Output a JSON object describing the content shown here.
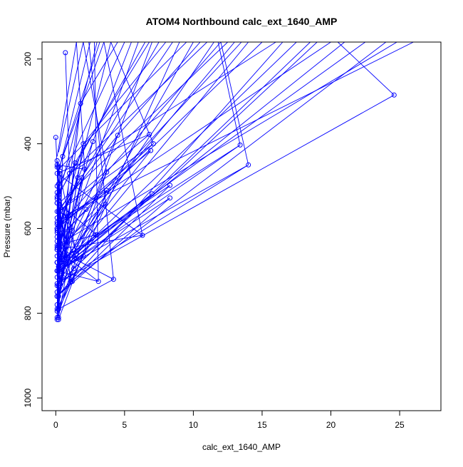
{
  "chart_data": {
    "type": "line",
    "title": "ATOM4 Northbound calc_ext_1640_AMP",
    "xlabel": "calc_ext_1640_AMP",
    "ylabel": "Pressure (mbar)",
    "xlim": [
      -1,
      28
    ],
    "ylim": [
      1030,
      160
    ],
    "y_reversed": true,
    "x_ticks": [
      0,
      5,
      10,
      15,
      20,
      25
    ],
    "y_ticks": [
      200,
      400,
      600,
      800,
      1000
    ],
    "grid": false,
    "legend": "none",
    "colors": {
      "series": "#0000ff",
      "axis": "#000000",
      "background": "#ffffff"
    },
    "series": [
      {
        "x": [
          0.7,
          1.0,
          0.2,
          1.8,
          0.1,
          0.5,
          0.2,
          2.0,
          0.1,
          0.3,
          0.1,
          2.1,
          0.2,
          0.1,
          0.2,
          2.7,
          0.1,
          0.3,
          0.1,
          0.2,
          1.4,
          0.1,
          0.8,
          0.1,
          1.9,
          0.2,
          0.1,
          0.2,
          0.1,
          4.5,
          0.1,
          0.2,
          0.1,
          2.0,
          0.1,
          0.5,
          0.1,
          0.2,
          0.1
        ],
        "y": [
          185,
          470,
          790,
          305,
          680,
          560,
          760,
          400,
          620,
          720,
          450,
          460,
          810,
          540,
          690,
          395,
          605,
          730,
          500,
          790,
          445,
          530,
          670,
          780,
          480,
          700,
          600,
          495,
          560,
          380,
          680,
          640,
          790,
          665,
          700,
          430,
          815,
          735,
          575
        ]
      },
      {
        "x": [
          0.0,
          0.1,
          0.8,
          0.1,
          1.2,
          0.1,
          0.3,
          0.1,
          1.6,
          0.2,
          0.4,
          0.1,
          1.1,
          0.1,
          0.2,
          3.7,
          0.1,
          0.3,
          0.1,
          0.2,
          2.2,
          0.1,
          0.5,
          0.1,
          1.5,
          0.2,
          0.1,
          3.0,
          0.1,
          0.2,
          0.1,
          0.9,
          0.2,
          0.1,
          1.3,
          0.1
        ],
        "y": [
          385,
          455,
          640,
          525,
          605,
          715,
          465,
          795,
          480,
          595,
          680,
          515,
          725,
          645,
          815,
          510,
          585,
          470,
          760,
          690,
          555,
          630,
          720,
          440,
          660,
          520,
          750,
          615,
          540,
          455,
          665,
          570,
          640,
          810,
          695,
          610
        ]
      },
      {
        "x": [
          24.6,
          0.1,
          14.0,
          0.2,
          13.4,
          0.1,
          8.3,
          0.1,
          8.3,
          0.2,
          7.0,
          0.2,
          6.9,
          0.1,
          7.1,
          0.2,
          6.8,
          0.1,
          6.3,
          0.1,
          4.2,
          0.2,
          3.7,
          0.1,
          3.6,
          0.1,
          3.1,
          0.1,
          2.9,
          0.1,
          1.5,
          0.1,
          1.2,
          0.1,
          0.9,
          0.1
        ],
        "y": [
          285,
          730,
          450,
          700,
          403,
          680,
          498,
          760,
          528,
          700,
          518,
          690,
          416,
          600,
          400,
          560,
          378,
          470,
          616,
          650,
          720,
          790,
          467,
          735,
          542,
          650,
          725,
          700,
          615,
          640,
          670,
          590,
          725,
          700,
          565,
          600
        ]
      }
    ],
    "upward_segments": [
      [
        0.2,
        760,
        7.0,
        160
      ],
      [
        0.2,
        720,
        10.0,
        160
      ],
      [
        0.1,
        690,
        6.0,
        160
      ],
      [
        0.3,
        640,
        4.0,
        160
      ],
      [
        0.1,
        600,
        12.0,
        160
      ],
      [
        0.2,
        560,
        8.5,
        160
      ],
      [
        0.1,
        540,
        3.0,
        160
      ],
      [
        0.2,
        500,
        5.0,
        160
      ],
      [
        0.1,
        480,
        2.5,
        160
      ],
      [
        0.2,
        460,
        9.5,
        160
      ],
      [
        0.1,
        430,
        1.5,
        160
      ],
      [
        0.3,
        700,
        14.0,
        160
      ],
      [
        0.1,
        660,
        13.0,
        160
      ],
      [
        0.2,
        620,
        15.0,
        160
      ],
      [
        0.1,
        580,
        7.5,
        160
      ],
      [
        0.2,
        520,
        6.5,
        160
      ],
      [
        0.1,
        500,
        11.0,
        160
      ],
      [
        0.3,
        450,
        3.5,
        160
      ],
      [
        0.2,
        420,
        2.0,
        160
      ],
      [
        1.0,
        470,
        16.0,
        160
      ],
      [
        1.8,
        305,
        4.5,
        160
      ],
      [
        2.0,
        400,
        8.0,
        160
      ],
      [
        2.7,
        395,
        5.5,
        160
      ],
      [
        0.5,
        430,
        3.2,
        160
      ],
      [
        4.5,
        380,
        10.5,
        160
      ],
      [
        0.8,
        670,
        11.5,
        160
      ],
      [
        1.4,
        445,
        6.8,
        160
      ],
      [
        0.1,
        800,
        9.0,
        160
      ],
      [
        1.5,
        660,
        17.5,
        160
      ],
      [
        1.1,
        725,
        24.0,
        160
      ],
      [
        3.0,
        615,
        22.5,
        160
      ],
      [
        0.1,
        640,
        24.8,
        160
      ],
      [
        0.1,
        760,
        16.5,
        160
      ],
      [
        0.2,
        590,
        20.0,
        160
      ],
      [
        0.5,
        720,
        18.5,
        160
      ],
      [
        0.9,
        565,
        26.0,
        160
      ],
      [
        0.2,
        700,
        21.0,
        160
      ],
      [
        0.1,
        545,
        12.5,
        160
      ],
      [
        1.3,
        695,
        19.0,
        160
      ],
      [
        2.2,
        555,
        13.5,
        160
      ]
    ],
    "downward_segments": [
      [
        11.8,
        160,
        13.4,
        403
      ],
      [
        12.0,
        160,
        14.0,
        450
      ],
      [
        20.5,
        160,
        24.6,
        285
      ],
      [
        3.5,
        160,
        6.3,
        616
      ],
      [
        2.4,
        160,
        4.2,
        720
      ],
      [
        2.8,
        160,
        3.1,
        725
      ],
      [
        1.5,
        160,
        2.1,
        460
      ],
      [
        2.0,
        160,
        3.7,
        467
      ],
      [
        4.0,
        160,
        7.1,
        400
      ]
    ]
  }
}
